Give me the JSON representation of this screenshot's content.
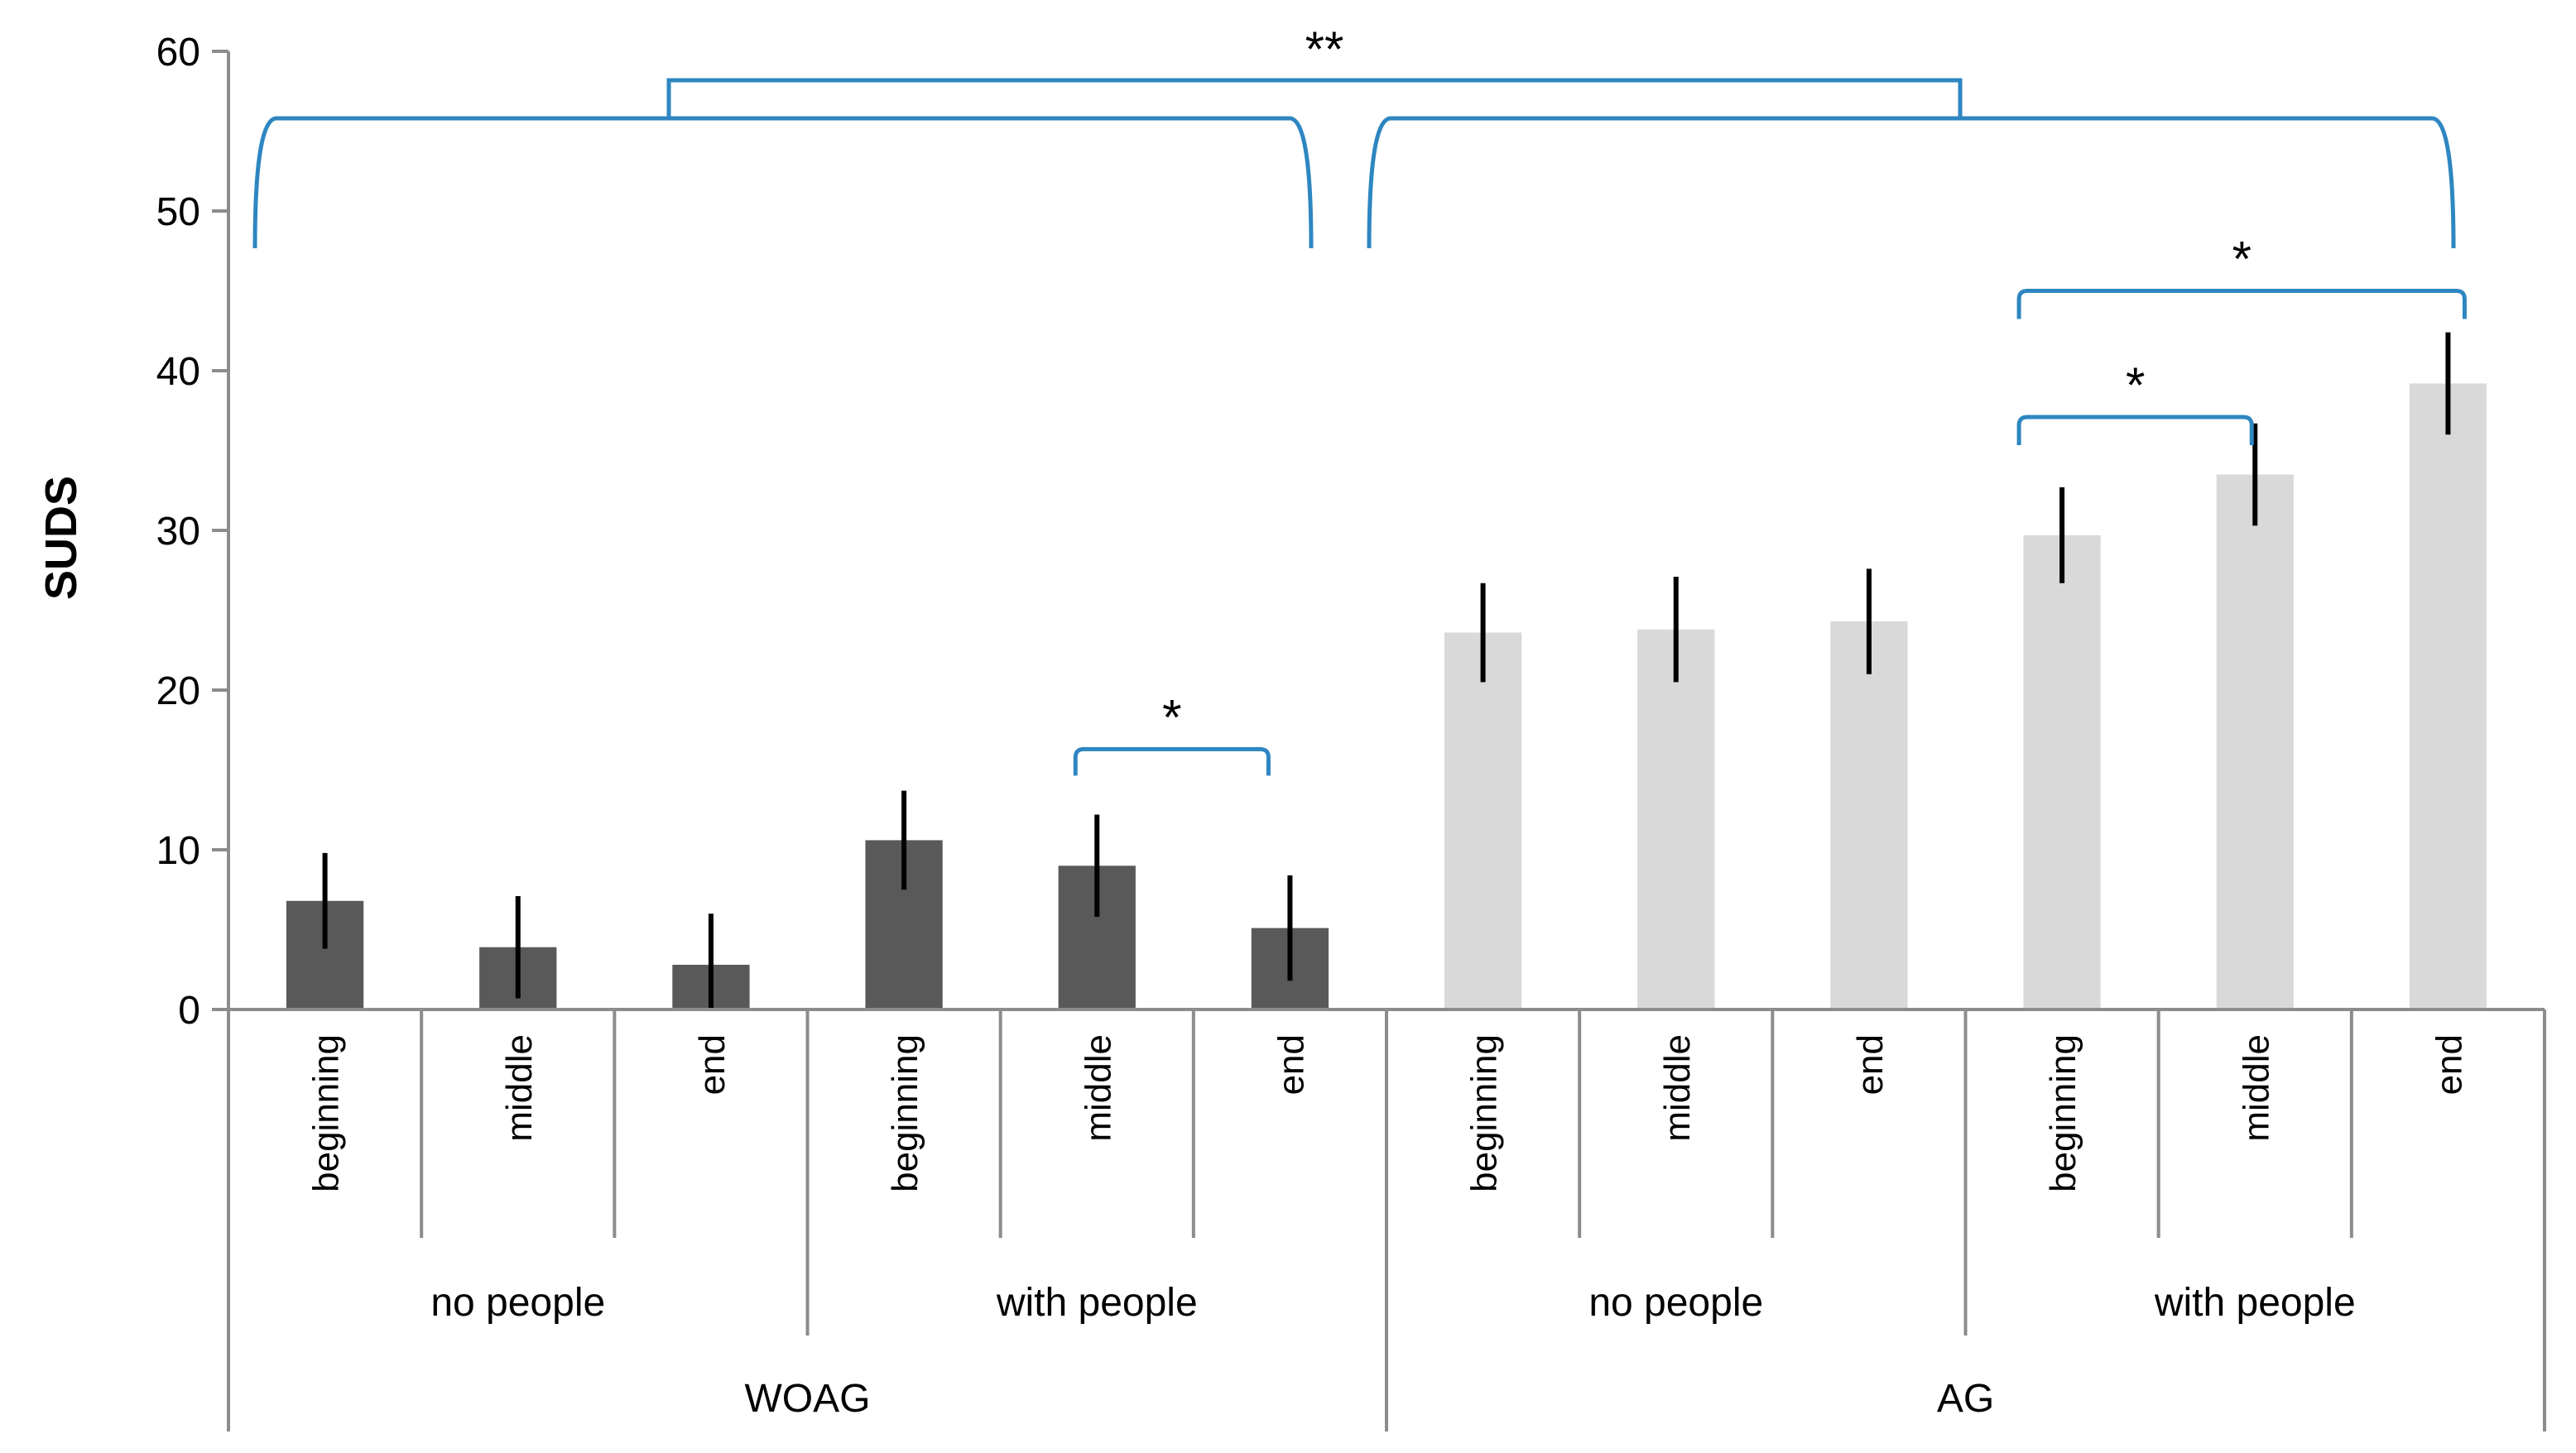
{
  "chart_data": {
    "type": "bar",
    "title": "",
    "ylabel": "SUDS",
    "xlabel": "",
    "ylim": [
      0,
      60
    ],
    "yticks": [
      0,
      10,
      20,
      30,
      40,
      50,
      60
    ],
    "grid": false,
    "legend": "none",
    "groups": [
      {
        "name": "WOAG",
        "color": "#595959",
        "subgroups": [
          {
            "name": "no people",
            "bars": [
              {
                "label": "beginning",
                "value": 6.8,
                "error": 3.0
              },
              {
                "label": "middle",
                "value": 3.9,
                "error": 3.2
              },
              {
                "label": "end",
                "value": 2.8,
                "error": 3.2
              }
            ]
          },
          {
            "name": "with people",
            "bars": [
              {
                "label": "beginning",
                "value": 10.6,
                "error": 3.1
              },
              {
                "label": "middle",
                "value": 9.0,
                "error": 3.2
              },
              {
                "label": "end",
                "value": 5.1,
                "error": 3.3
              }
            ]
          }
        ]
      },
      {
        "name": "AG",
        "color": "#d9d9d9",
        "subgroups": [
          {
            "name": "no people",
            "bars": [
              {
                "label": "beginning",
                "value": 23.6,
                "error": 3.1
              },
              {
                "label": "middle",
                "value": 23.8,
                "error": 3.3
              },
              {
                "label": "end",
                "value": 24.3,
                "error": 3.3
              }
            ]
          },
          {
            "name": "with people",
            "bars": [
              {
                "label": "beginning",
                "value": 29.7,
                "error": 3.0
              },
              {
                "label": "middle",
                "value": 33.5,
                "error": 3.2
              },
              {
                "label": "end",
                "value": 39.2,
                "error": 3.2
              }
            ]
          }
        ]
      }
    ],
    "significance": [
      {
        "from": "WOAG / with people / middle",
        "to": "WOAG / with people / end",
        "label": "*"
      },
      {
        "from": "AG / with people / beginning",
        "to": "AG / with people / middle",
        "label": "*"
      },
      {
        "from": "AG / with people / beginning",
        "to": "AG / with people / end",
        "label": "*"
      },
      {
        "from": "WOAG",
        "to": "AG",
        "label": "**"
      }
    ],
    "bracket_color": "#2e86c1",
    "axis_color": "#8c8c8c",
    "errorbar_color": "#000000"
  }
}
